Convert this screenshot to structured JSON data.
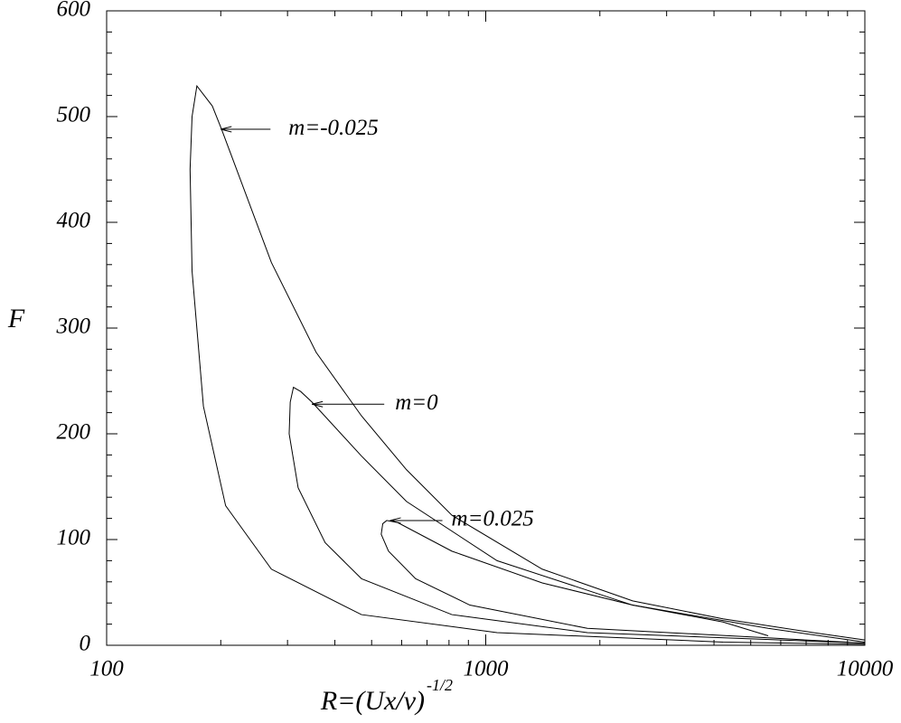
{
  "chart_data": {
    "type": "line",
    "xlabel": {
      "text": "R=(Ux/ν)",
      "superscript": "-1/2"
    },
    "ylabel": "F",
    "xscale": "log",
    "xlim": [
      100,
      10000
    ],
    "ylim": [
      0,
      600
    ],
    "xticks": [
      100,
      1000,
      10000
    ],
    "yticks": [
      0,
      100,
      200,
      300,
      400,
      500,
      600
    ],
    "xminorticks": [
      200,
      300,
      400,
      500,
      600,
      700,
      800,
      900,
      2000,
      3000,
      4000,
      5000,
      6000,
      7000,
      8000,
      9000
    ],
    "yminorticks": [
      20,
      40,
      60,
      80,
      120,
      140,
      160,
      180,
      220,
      240,
      260,
      280,
      320,
      340,
      360,
      380,
      420,
      440,
      460,
      480,
      520,
      540,
      560,
      580
    ],
    "series": [
      {
        "name": "m=-0.025",
        "color": "#000000",
        "label_xy": [
          200,
          488
        ],
        "x": [
          10000,
          4225,
          1071,
          470,
          272,
          206,
          180,
          168,
          166,
          168,
          173,
          190,
          201,
          272,
          357,
          470,
          618,
          814,
          1409,
          2440,
          4225,
          7310,
          10000
        ],
        "values": [
          1,
          3,
          12,
          29,
          72,
          132,
          226,
          354,
          450,
          500,
          529,
          510,
          488,
          362,
          277,
          217,
          166,
          123,
          72,
          42,
          25,
          12,
          5
        ]
      },
      {
        "name": "m=0",
        "color": "#000000",
        "label_xy": [
          348,
          228
        ],
        "x": [
          10000,
          1854,
          814,
          470,
          377,
          320,
          303,
          305,
          311,
          325,
          348,
          470,
          618,
          1071,
          2440,
          5560,
          10000
        ],
        "values": [
          2,
          12,
          29,
          63,
          97,
          149,
          200,
          230,
          244,
          240,
          230,
          179,
          136,
          80,
          38,
          16,
          3
        ]
      },
      {
        "name": "m=0.025",
        "color": "#000000",
        "label_xy": [
          559,
          118
        ],
        "x": [
          10000,
          5560,
          1854,
          908,
          653,
          554,
          530,
          535,
          548,
          586,
          814,
          1409,
          2440,
          4225,
          5560
        ],
        "values": [
          2,
          7,
          16,
          38,
          63,
          89,
          105,
          115,
          118,
          116,
          89,
          59,
          38,
          22,
          9
        ]
      }
    ]
  }
}
